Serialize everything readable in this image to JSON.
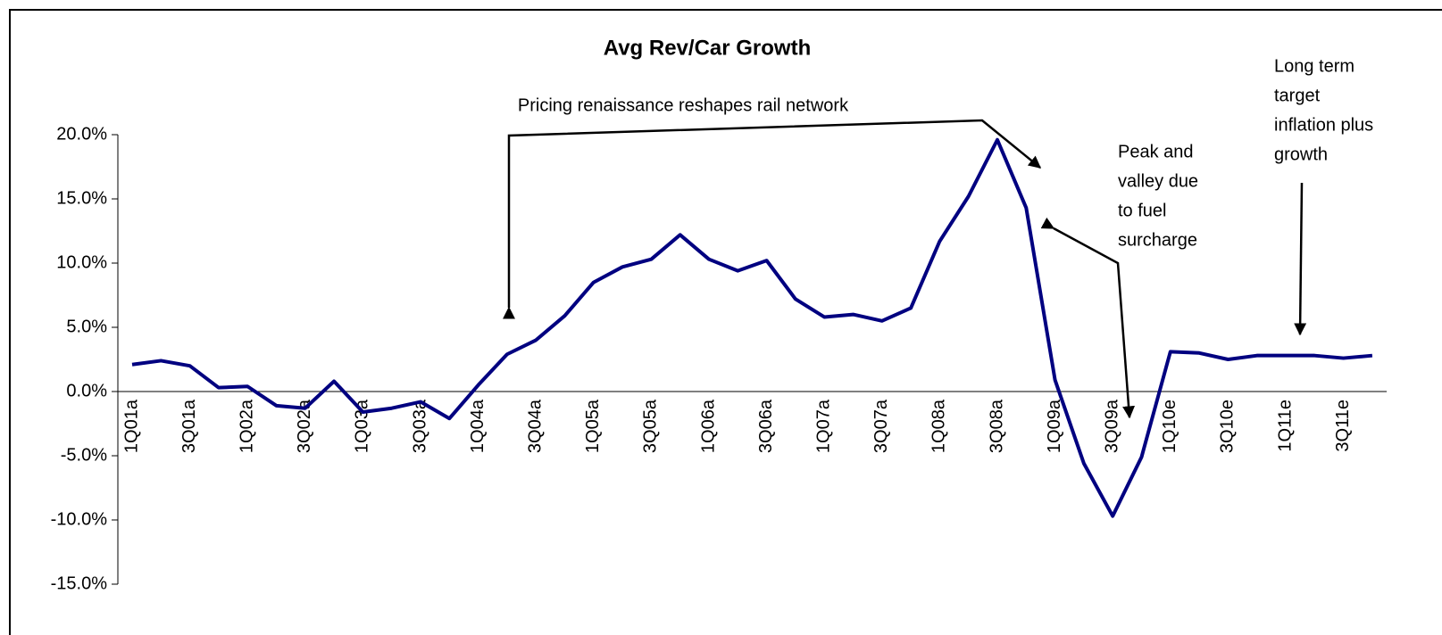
{
  "chart_data": {
    "type": "line",
    "title": "Avg Rev/Car Growth",
    "categories": [
      "1Q01a",
      null,
      "3Q01a",
      null,
      "1Q02a",
      null,
      "3Q02a",
      null,
      "1Q03a",
      null,
      "3Q03a",
      null,
      "1Q04a",
      null,
      "3Q04a",
      null,
      "1Q05a",
      null,
      "3Q05a",
      null,
      "1Q06a",
      null,
      "3Q06a",
      null,
      "1Q07a",
      null,
      "3Q07a",
      null,
      "1Q08a",
      null,
      "3Q08a",
      null,
      "1Q09a",
      null,
      "3Q09a",
      null,
      "1Q10e",
      null,
      "3Q10e",
      null,
      "1Q11e",
      null,
      "3Q11e",
      null
    ],
    "values": [
      2.1,
      2.4,
      2.0,
      0.3,
      0.4,
      -1.1,
      -1.3,
      0.8,
      -1.6,
      -1.3,
      -0.8,
      -2.1,
      0.5,
      2.9,
      4.0,
      5.9,
      8.5,
      9.7,
      10.3,
      12.2,
      10.3,
      9.4,
      10.2,
      7.2,
      5.8,
      6.0,
      5.5,
      6.5,
      11.7,
      15.2,
      19.6,
      14.3,
      0.9,
      -5.6,
      -9.7,
      -5.1,
      3.1,
      3.0,
      2.5,
      2.8,
      2.8,
      2.8,
      2.6,
      2.8
    ],
    "color": "#000080",
    "ylim": [
      -15,
      20
    ],
    "yticks": [
      {
        "value": -15,
        "label": "-15.0%"
      },
      {
        "value": -10,
        "label": "-10.0%"
      },
      {
        "value": -5,
        "label": "-5.0%"
      },
      {
        "value": 0,
        "label": "0.0%"
      },
      {
        "value": 5,
        "label": "5.0%"
      },
      {
        "value": 10,
        "label": "10.0%"
      },
      {
        "value": 15,
        "label": "15.0%"
      },
      {
        "value": 20,
        "label": "20.0%"
      }
    ],
    "annotations": [
      [
        "Pricing renaissance reshapes rail network"
      ],
      [
        "Peak and",
        "valley due",
        "to fuel",
        "surcharge"
      ],
      [
        "Long term",
        "target",
        "inflation plus",
        "growth"
      ]
    ]
  }
}
